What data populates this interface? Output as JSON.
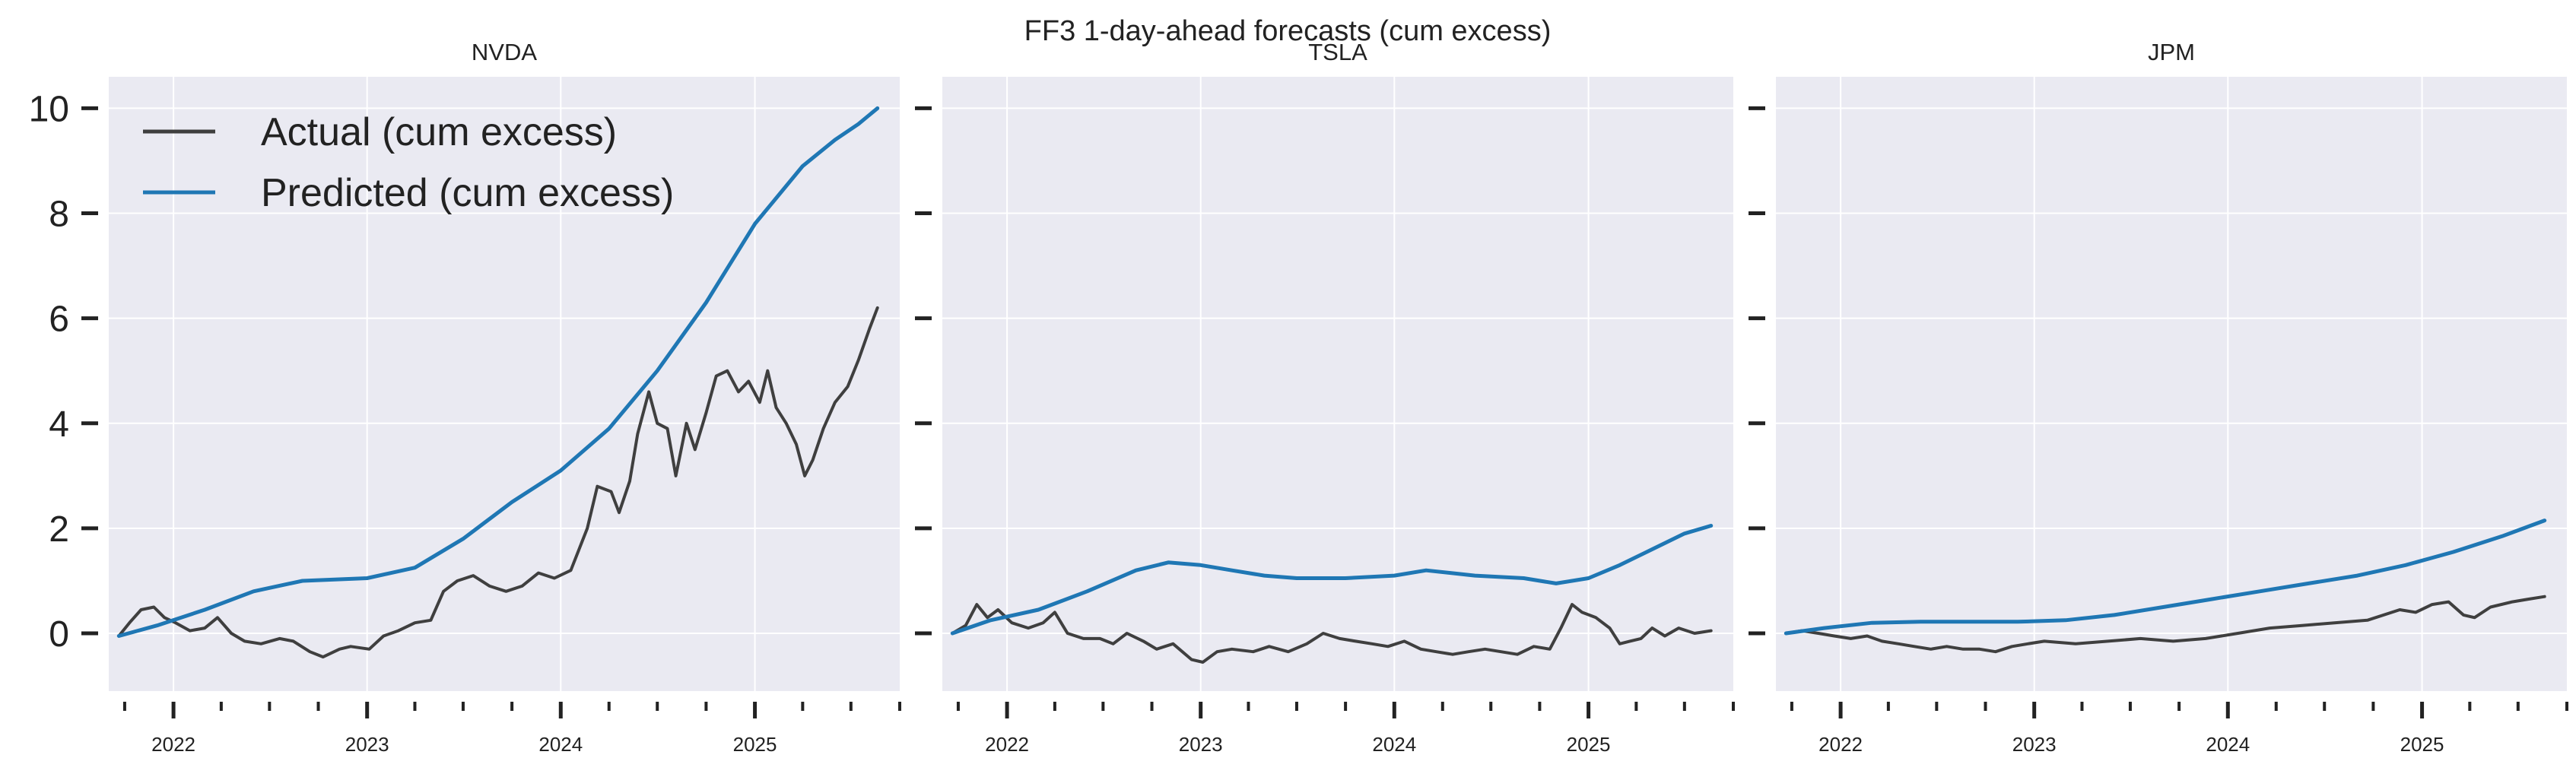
{
  "figure": {
    "suptitle": "FF3 1-day-ahead forecasts (cum excess)"
  },
  "colors": {
    "axes_bg": "#eaeaf2",
    "grid": "#ffffff",
    "actual": "#3f3f3f",
    "predicted": "#1f77b4",
    "text": "#222222"
  },
  "chart_data": [
    {
      "type": "line",
      "title": "NVDA",
      "xlabel": "",
      "ylabel": "",
      "x_range": [
        "2021-09-01",
        "2025-10-01"
      ],
      "ylim": [
        -1.1,
        10.6
      ],
      "yticks": [
        0,
        2,
        4,
        6,
        8,
        10
      ],
      "xticks": [
        {
          "date": "2022-01-01",
          "label": "2022"
        },
        {
          "date": "2023-01-01",
          "label": "2023"
        },
        {
          "date": "2024-01-01",
          "label": "2024"
        },
        {
          "date": "2025-01-01",
          "label": "2025"
        }
      ],
      "grid": true,
      "legend": {
        "placement": "upper-left",
        "entries": [
          "Actual (cum excess)",
          "Predicted (cum excess)"
        ]
      },
      "series": [
        {
          "name": "Actual (cum excess)",
          "points": [
            [
              "2021-09-20",
              -0.05
            ],
            [
              "2021-10-10",
              0.2
            ],
            [
              "2021-11-01",
              0.45
            ],
            [
              "2021-11-25",
              0.5
            ],
            [
              "2021-12-15",
              0.3
            ],
            [
              "2022-01-05",
              0.2
            ],
            [
              "2022-02-01",
              0.05
            ],
            [
              "2022-03-01",
              0.1
            ],
            [
              "2022-03-25",
              0.3
            ],
            [
              "2022-04-20",
              0.0
            ],
            [
              "2022-05-15",
              -0.15
            ],
            [
              "2022-06-15",
              -0.2
            ],
            [
              "2022-07-20",
              -0.1
            ],
            [
              "2022-08-15",
              -0.15
            ],
            [
              "2022-09-15",
              -0.35
            ],
            [
              "2022-10-10",
              -0.45
            ],
            [
              "2022-11-10",
              -0.3
            ],
            [
              "2022-12-01",
              -0.25
            ],
            [
              "2023-01-05",
              -0.3
            ],
            [
              "2023-02-01",
              -0.05
            ],
            [
              "2023-03-01",
              0.05
            ],
            [
              "2023-04-01",
              0.2
            ],
            [
              "2023-05-01",
              0.25
            ],
            [
              "2023-05-25",
              0.8
            ],
            [
              "2023-06-20",
              1.0
            ],
            [
              "2023-07-20",
              1.1
            ],
            [
              "2023-08-20",
              0.9
            ],
            [
              "2023-09-20",
              0.8
            ],
            [
              "2023-10-20",
              0.9
            ],
            [
              "2023-11-20",
              1.15
            ],
            [
              "2023-12-20",
              1.05
            ],
            [
              "2024-01-20",
              1.2
            ],
            [
              "2024-02-20",
              2.0
            ],
            [
              "2024-03-10",
              2.8
            ],
            [
              "2024-04-05",
              2.7
            ],
            [
              "2024-04-20",
              2.3
            ],
            [
              "2024-05-10",
              2.9
            ],
            [
              "2024-05-25",
              3.8
            ],
            [
              "2024-06-15",
              4.6
            ],
            [
              "2024-07-01",
              4.0
            ],
            [
              "2024-07-20",
              3.9
            ],
            [
              "2024-08-05",
              3.0
            ],
            [
              "2024-08-25",
              4.0
            ],
            [
              "2024-09-10",
              3.5
            ],
            [
              "2024-10-01",
              4.2
            ],
            [
              "2024-10-20",
              4.9
            ],
            [
              "2024-11-10",
              5.0
            ],
            [
              "2024-12-01",
              4.6
            ],
            [
              "2024-12-20",
              4.8
            ],
            [
              "2025-01-10",
              4.4
            ],
            [
              "2025-01-25",
              5.0
            ],
            [
              "2025-02-10",
              4.3
            ],
            [
              "2025-03-01",
              4.0
            ],
            [
              "2025-03-20",
              3.6
            ],
            [
              "2025-04-05",
              3.0
            ],
            [
              "2025-04-20",
              3.3
            ],
            [
              "2025-05-10",
              3.9
            ],
            [
              "2025-06-01",
              4.4
            ],
            [
              "2025-06-25",
              4.7
            ],
            [
              "2025-07-15",
              5.2
            ],
            [
              "2025-08-05",
              5.8
            ],
            [
              "2025-08-20",
              6.2
            ]
          ]
        },
        {
          "name": "Predicted (cum excess)",
          "points": [
            [
              "2021-09-20",
              -0.05
            ],
            [
              "2021-12-01",
              0.15
            ],
            [
              "2022-03-01",
              0.45
            ],
            [
              "2022-06-01",
              0.8
            ],
            [
              "2022-09-01",
              1.0
            ],
            [
              "2023-01-01",
              1.05
            ],
            [
              "2023-04-01",
              1.25
            ],
            [
              "2023-07-01",
              1.8
            ],
            [
              "2023-10-01",
              2.5
            ],
            [
              "2024-01-01",
              3.1
            ],
            [
              "2024-04-01",
              3.9
            ],
            [
              "2024-07-01",
              5.0
            ],
            [
              "2024-10-01",
              6.3
            ],
            [
              "2025-01-01",
              7.8
            ],
            [
              "2025-04-01",
              8.9
            ],
            [
              "2025-06-01",
              9.4
            ],
            [
              "2025-07-15",
              9.7
            ],
            [
              "2025-08-20",
              10.0
            ]
          ]
        }
      ]
    },
    {
      "type": "line",
      "title": "TSLA",
      "xlabel": "",
      "ylabel": "",
      "x_range": [
        "2021-09-01",
        "2025-10-01"
      ],
      "ylim": [
        -1.1,
        10.6
      ],
      "yticks": [
        0,
        2,
        4,
        6,
        8,
        10
      ],
      "xticks": [
        {
          "date": "2022-01-01",
          "label": "2022"
        },
        {
          "date": "2023-01-01",
          "label": "2023"
        },
        {
          "date": "2024-01-01",
          "label": "2024"
        },
        {
          "date": "2025-01-01",
          "label": "2025"
        }
      ],
      "grid": true,
      "series": [
        {
          "name": "Actual (cum excess)",
          "points": [
            [
              "2021-09-20",
              0.0
            ],
            [
              "2021-10-15",
              0.15
            ],
            [
              "2021-11-05",
              0.55
            ],
            [
              "2021-11-25",
              0.3
            ],
            [
              "2021-12-15",
              0.45
            ],
            [
              "2022-01-10",
              0.2
            ],
            [
              "2022-02-10",
              0.1
            ],
            [
              "2022-03-10",
              0.2
            ],
            [
              "2022-04-01",
              0.4
            ],
            [
              "2022-04-25",
              0.0
            ],
            [
              "2022-05-25",
              -0.1
            ],
            [
              "2022-06-25",
              -0.1
            ],
            [
              "2022-07-20",
              -0.2
            ],
            [
              "2022-08-15",
              0.0
            ],
            [
              "2022-09-15",
              -0.15
            ],
            [
              "2022-10-10",
              -0.3
            ],
            [
              "2022-11-10",
              -0.2
            ],
            [
              "2022-12-15",
              -0.5
            ],
            [
              "2023-01-05",
              -0.55
            ],
            [
              "2023-02-01",
              -0.35
            ],
            [
              "2023-03-01",
              -0.3
            ],
            [
              "2023-04-10",
              -0.35
            ],
            [
              "2023-05-10",
              -0.25
            ],
            [
              "2023-06-15",
              -0.35
            ],
            [
              "2023-07-20",
              -0.2
            ],
            [
              "2023-08-20",
              0.0
            ],
            [
              "2023-09-20",
              -0.1
            ],
            [
              "2023-10-20",
              -0.15
            ],
            [
              "2023-11-20",
              -0.2
            ],
            [
              "2023-12-20",
              -0.25
            ],
            [
              "2024-01-20",
              -0.15
            ],
            [
              "2024-02-20",
              -0.3
            ],
            [
              "2024-03-20",
              -0.35
            ],
            [
              "2024-04-20",
              -0.4
            ],
            [
              "2024-05-20",
              -0.35
            ],
            [
              "2024-06-20",
              -0.3
            ],
            [
              "2024-07-20",
              -0.35
            ],
            [
              "2024-08-20",
              -0.4
            ],
            [
              "2024-09-20",
              -0.25
            ],
            [
              "2024-10-20",
              -0.3
            ],
            [
              "2024-11-10",
              0.1
            ],
            [
              "2024-12-01",
              0.55
            ],
            [
              "2024-12-20",
              0.4
            ],
            [
              "2025-01-15",
              0.3
            ],
            [
              "2025-02-10",
              0.1
            ],
            [
              "2025-03-01",
              -0.2
            ],
            [
              "2025-03-20",
              -0.15
            ],
            [
              "2025-04-10",
              -0.1
            ],
            [
              "2025-05-01",
              0.1
            ],
            [
              "2025-05-25",
              -0.05
            ],
            [
              "2025-06-20",
              0.1
            ],
            [
              "2025-07-20",
              0.0
            ],
            [
              "2025-08-20",
              0.05
            ]
          ]
        },
        {
          "name": "Predicted (cum excess)",
          "points": [
            [
              "2021-09-20",
              0.0
            ],
            [
              "2021-12-01",
              0.25
            ],
            [
              "2022-03-01",
              0.45
            ],
            [
              "2022-06-01",
              0.8
            ],
            [
              "2022-09-01",
              1.2
            ],
            [
              "2022-11-01",
              1.35
            ],
            [
              "2023-01-01",
              1.3
            ],
            [
              "2023-03-01",
              1.2
            ],
            [
              "2023-05-01",
              1.1
            ],
            [
              "2023-07-01",
              1.05
            ],
            [
              "2023-10-01",
              1.05
            ],
            [
              "2024-01-01",
              1.1
            ],
            [
              "2024-03-01",
              1.2
            ],
            [
              "2024-06-01",
              1.1
            ],
            [
              "2024-09-01",
              1.05
            ],
            [
              "2024-11-01",
              0.95
            ],
            [
              "2025-01-01",
              1.05
            ],
            [
              "2025-03-01",
              1.3
            ],
            [
              "2025-05-01",
              1.6
            ],
            [
              "2025-07-01",
              1.9
            ],
            [
              "2025-08-20",
              2.05
            ]
          ]
        }
      ]
    },
    {
      "type": "line",
      "title": "JPM",
      "xlabel": "",
      "ylabel": "",
      "x_range": [
        "2021-09-01",
        "2025-10-01"
      ],
      "ylim": [
        -1.1,
        10.6
      ],
      "yticks": [
        0,
        2,
        4,
        6,
        8,
        10
      ],
      "xticks": [
        {
          "date": "2022-01-01",
          "label": "2022"
        },
        {
          "date": "2023-01-01",
          "label": "2023"
        },
        {
          "date": "2024-01-01",
          "label": "2024"
        },
        {
          "date": "2025-01-01",
          "label": "2025"
        }
      ],
      "grid": true,
      "series": [
        {
          "name": "Actual (cum excess)",
          "points": [
            [
              "2021-09-20",
              0.0
            ],
            [
              "2021-10-20",
              0.05
            ],
            [
              "2021-11-20",
              0.0
            ],
            [
              "2021-12-20",
              -0.05
            ],
            [
              "2022-01-20",
              -0.1
            ],
            [
              "2022-02-20",
              -0.05
            ],
            [
              "2022-03-20",
              -0.15
            ],
            [
              "2022-04-20",
              -0.2
            ],
            [
              "2022-05-20",
              -0.25
            ],
            [
              "2022-06-20",
              -0.3
            ],
            [
              "2022-07-20",
              -0.25
            ],
            [
              "2022-08-20",
              -0.3
            ],
            [
              "2022-09-20",
              -0.3
            ],
            [
              "2022-10-20",
              -0.35
            ],
            [
              "2022-11-20",
              -0.25
            ],
            [
              "2022-12-20",
              -0.2
            ],
            [
              "2023-01-20",
              -0.15
            ],
            [
              "2023-03-20",
              -0.2
            ],
            [
              "2023-05-20",
              -0.15
            ],
            [
              "2023-07-20",
              -0.1
            ],
            [
              "2023-09-20",
              -0.15
            ],
            [
              "2023-11-20",
              -0.1
            ],
            [
              "2024-01-20",
              0.0
            ],
            [
              "2024-03-20",
              0.1
            ],
            [
              "2024-05-20",
              0.15
            ],
            [
              "2024-07-20",
              0.2
            ],
            [
              "2024-09-20",
              0.25
            ],
            [
              "2024-11-20",
              0.45
            ],
            [
              "2024-12-20",
              0.4
            ],
            [
              "2025-01-20",
              0.55
            ],
            [
              "2025-02-20",
              0.6
            ],
            [
              "2025-03-20",
              0.35
            ],
            [
              "2025-04-10",
              0.3
            ],
            [
              "2025-05-10",
              0.5
            ],
            [
              "2025-06-20",
              0.6
            ],
            [
              "2025-07-20",
              0.65
            ],
            [
              "2025-08-20",
              0.7
            ]
          ]
        },
        {
          "name": "Predicted (cum excess)",
          "points": [
            [
              "2021-09-20",
              0.0
            ],
            [
              "2021-12-01",
              0.1
            ],
            [
              "2022-03-01",
              0.2
            ],
            [
              "2022-06-01",
              0.22
            ],
            [
              "2022-09-01",
              0.22
            ],
            [
              "2022-12-01",
              0.22
            ],
            [
              "2023-03-01",
              0.25
            ],
            [
              "2023-06-01",
              0.35
            ],
            [
              "2023-09-01",
              0.5
            ],
            [
              "2023-12-01",
              0.65
            ],
            [
              "2024-03-01",
              0.8
            ],
            [
              "2024-06-01",
              0.95
            ],
            [
              "2024-09-01",
              1.1
            ],
            [
              "2024-12-01",
              1.3
            ],
            [
              "2025-03-01",
              1.55
            ],
            [
              "2025-06-01",
              1.85
            ],
            [
              "2025-08-20",
              2.15
            ]
          ]
        }
      ]
    }
  ]
}
